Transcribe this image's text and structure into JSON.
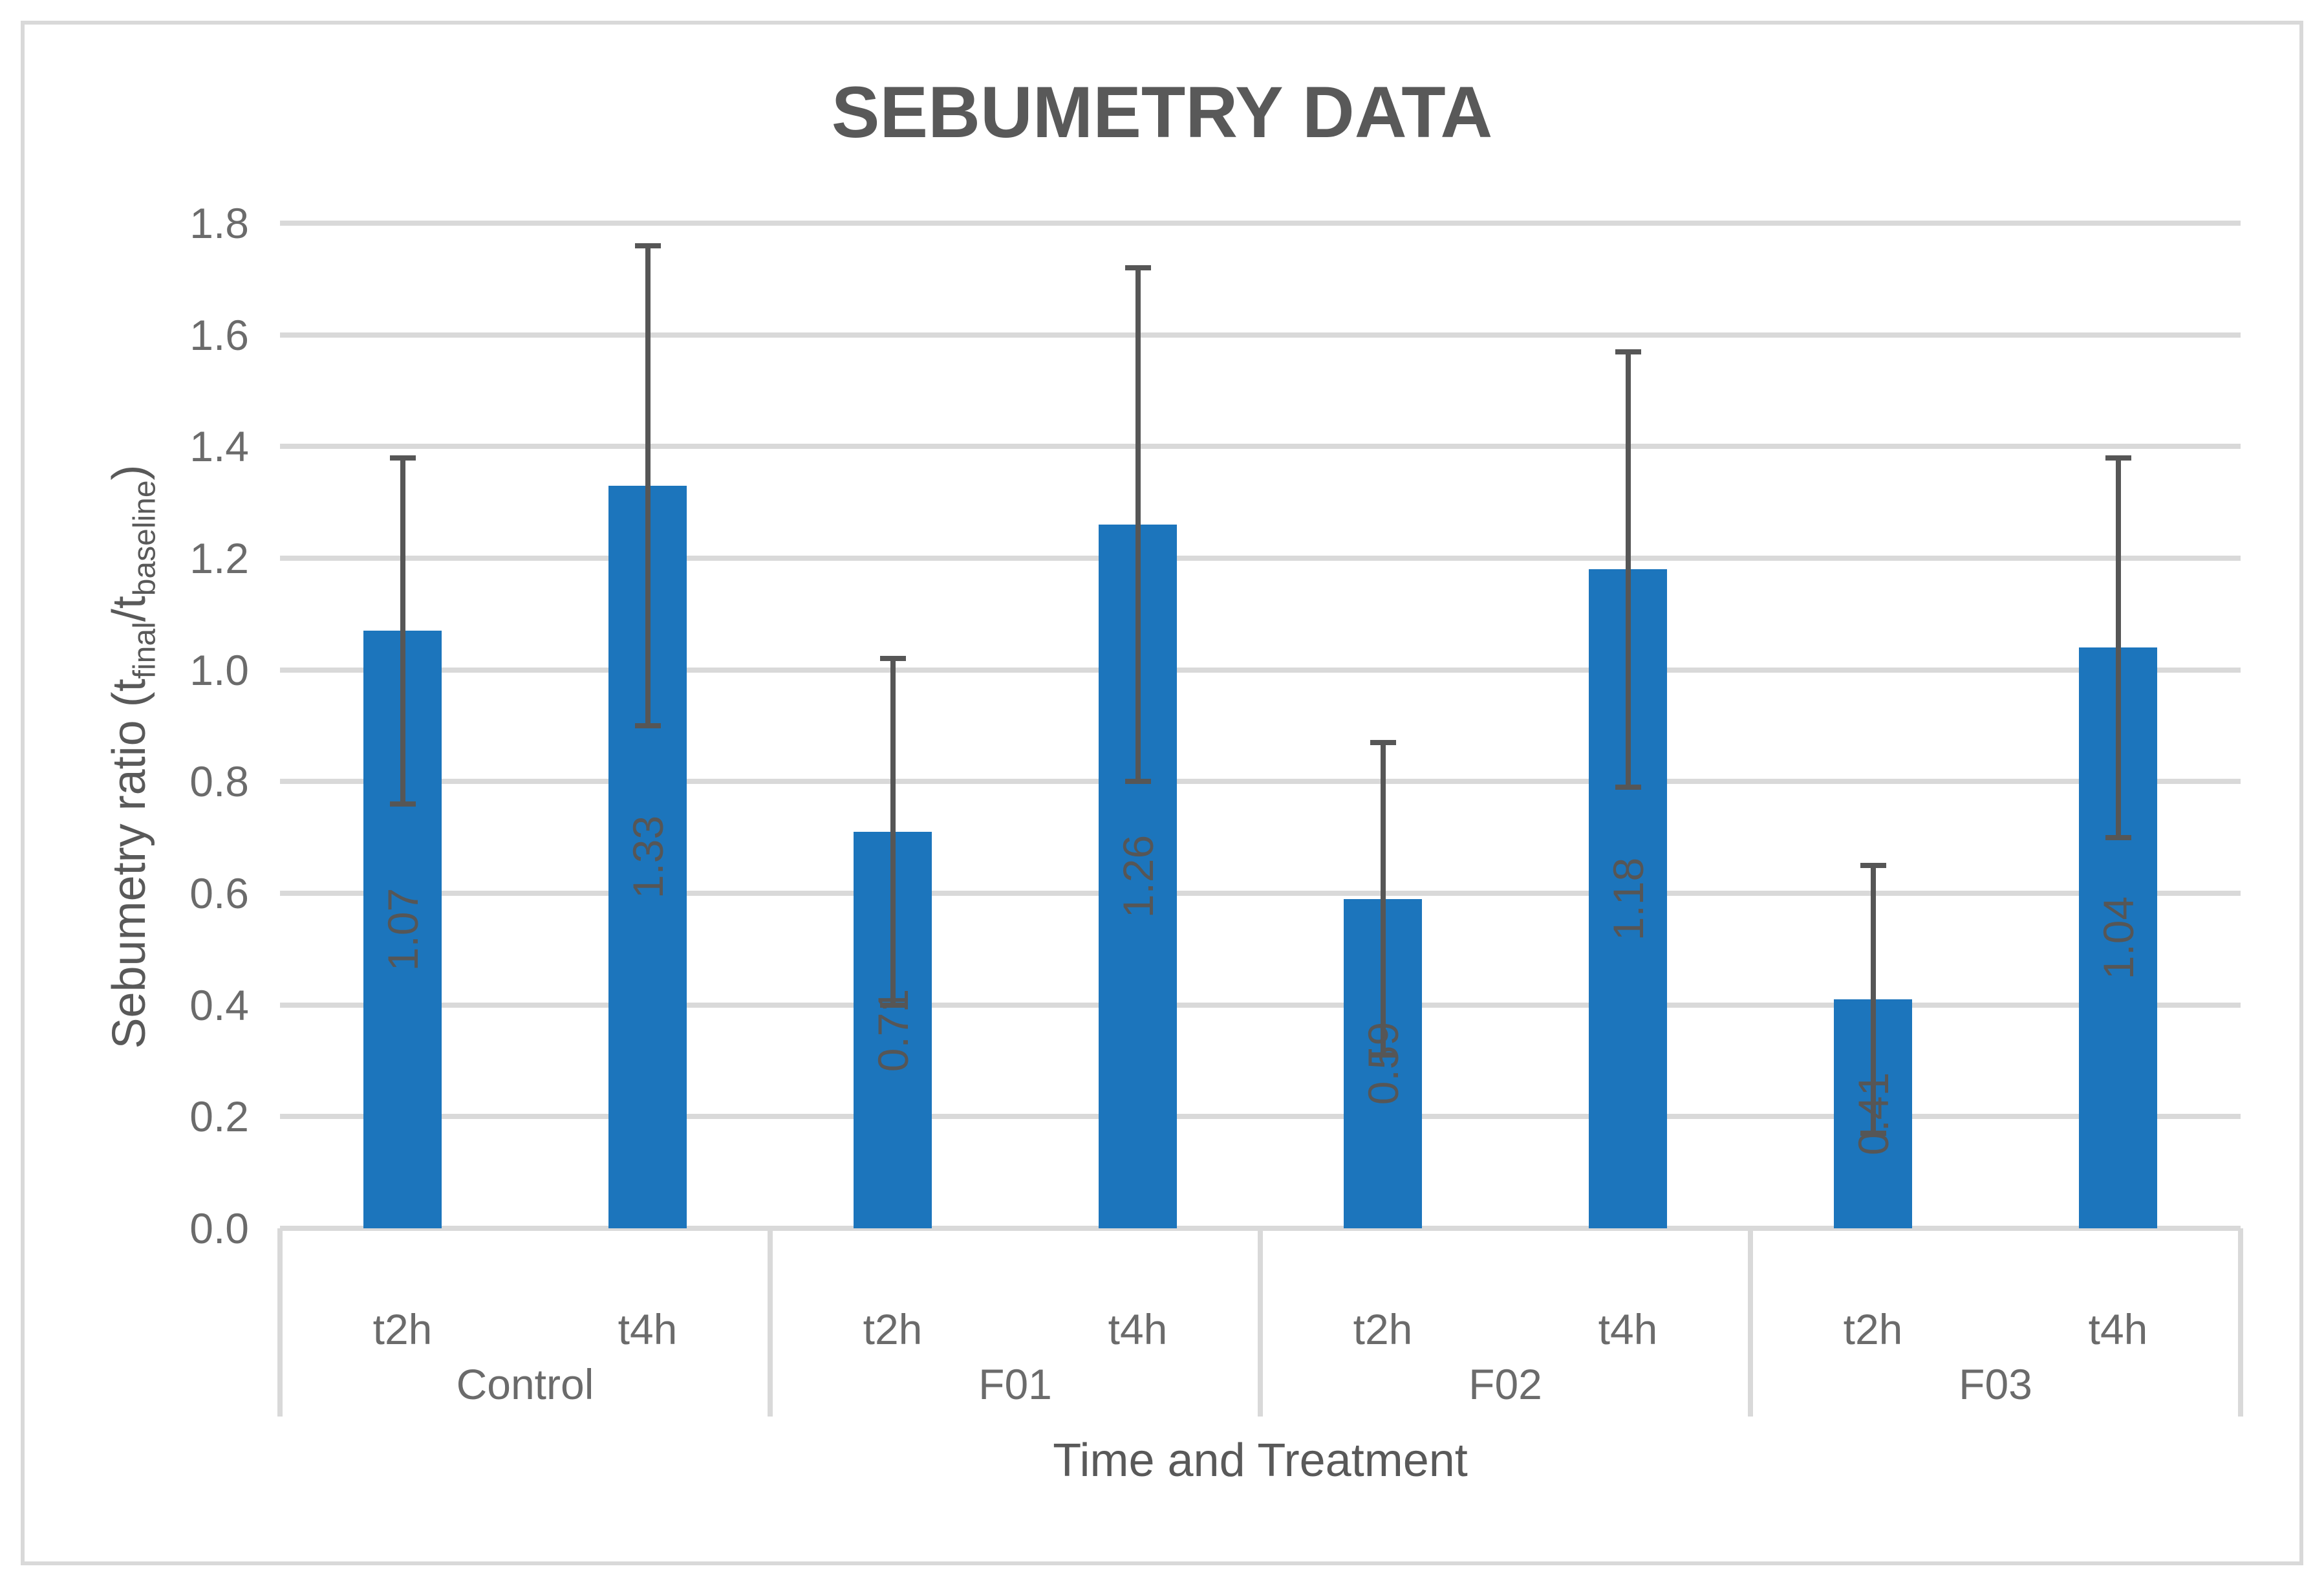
{
  "title": "SEBUMETRY DATA",
  "x_axis_title": "Time and Treatment",
  "y_axis_title": {
    "prefix": "Sebumetry ratio (t",
    "sub1": "final",
    "mid": "/t",
    "sub2": "baseline",
    "suffix": ")"
  },
  "chart_data": {
    "type": "bar",
    "title": "SEBUMETRY DATA",
    "xlabel": "Time and Treatment",
    "ylabel": "Sebumetry ratio (t_final/t_baseline)",
    "ylim": [
      0,
      1.8
    ],
    "ytick_step": 0.2,
    "ytick_labels": [
      "0.0",
      "0.2",
      "0.4",
      "0.6",
      "0.8",
      "1.0",
      "1.2",
      "1.4",
      "1.6",
      "1.8"
    ],
    "grid": true,
    "legend": false,
    "error_bars": true,
    "groups": [
      "Control",
      "F01",
      "F02",
      "F03"
    ],
    "times": [
      "t2h",
      "t4h"
    ],
    "bars": [
      {
        "group": "Control",
        "time": "t2h",
        "value": 1.07,
        "error": 0.31,
        "label": "1.07"
      },
      {
        "group": "Control",
        "time": "t4h",
        "value": 1.33,
        "error": 0.43,
        "label": "1.33"
      },
      {
        "group": "F01",
        "time": "t2h",
        "value": 0.71,
        "error": 0.31,
        "label": "0.71"
      },
      {
        "group": "F01",
        "time": "t4h",
        "value": 1.26,
        "error": 0.46,
        "label": "1.26"
      },
      {
        "group": "F02",
        "time": "t2h",
        "value": 0.59,
        "error": 0.28,
        "label": "0.59"
      },
      {
        "group": "F02",
        "time": "t4h",
        "value": 1.18,
        "error": 0.39,
        "label": "1.18"
      },
      {
        "group": "F03",
        "time": "t2h",
        "value": 0.41,
        "error": 0.24,
        "label": "0.41"
      },
      {
        "group": "F03",
        "time": "t4h",
        "value": 1.04,
        "error": 0.34,
        "label": "1.04"
      }
    ],
    "colors": {
      "bar": "#1C75BC",
      "error": "#565656",
      "data_label": "#565656",
      "grid": "#D9D9D9",
      "axis_frame": "#D9D9D9",
      "tick_text": "#6B6B6B",
      "title_text": "#595959"
    }
  }
}
